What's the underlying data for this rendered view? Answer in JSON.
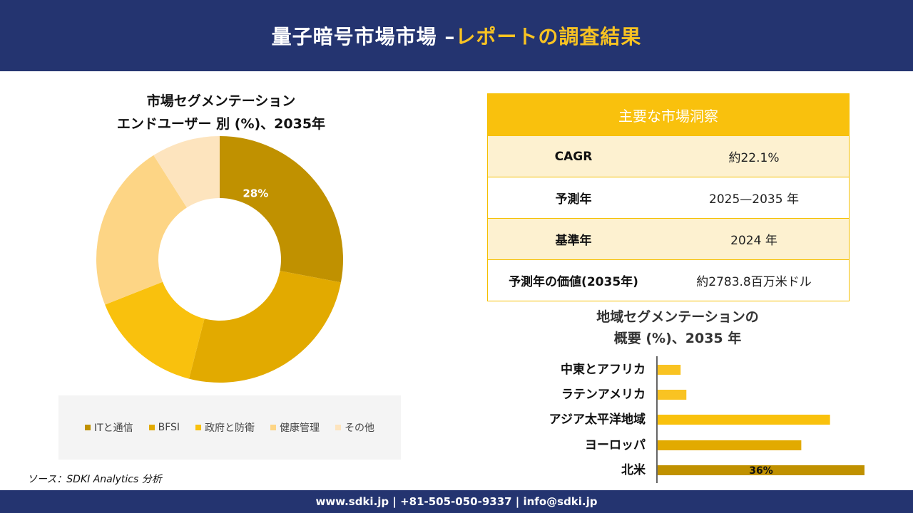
{
  "header": {
    "title_main": "量子暗号市場市場 –",
    "title_accent": "レポートの調査結果"
  },
  "footer": {
    "contact": "www.sdki.jp | +81-505-050-9337 | info@sdki.jp"
  },
  "source": "ソース：SDKI Analytics 分析",
  "insight": {
    "heading": "主要な市場洞察",
    "rows": [
      {
        "label": "CAGR",
        "value": "約22.1%"
      },
      {
        "label": "予測年",
        "value": "2025—2035 年"
      },
      {
        "label": "基準年",
        "value": "2024 年"
      },
      {
        "label": "予測年の価値(2035年)",
        "value": "約2783.8百万米ドル"
      }
    ]
  },
  "chart_data": [
    {
      "type": "pie",
      "title": "市場セグメンテーション",
      "subtitle": "エンドユーザー 別 (%)、2035年",
      "categories": [
        "ITと通信",
        "BFSI",
        "政府と防衛",
        "健康管理",
        "その他"
      ],
      "values": [
        28,
        26,
        15,
        22,
        9
      ],
      "data_labels": [
        "28%",
        "",
        "",
        "",
        ""
      ],
      "colors": [
        "#c09100",
        "#e2aa00",
        "#f9c10d",
        "#fdd585",
        "#fde4be"
      ],
      "legend_position": "bottom",
      "donut": true
    },
    {
      "type": "bar",
      "orientation": "horizontal",
      "title": "地域セグメンテーションの",
      "subtitle": "概要 (%)、2035 年",
      "categories": [
        "中東とアフリカ",
        "ラテンアメリカ",
        "アジア太平洋地域",
        "ヨーロッパ",
        "北米"
      ],
      "values": [
        4,
        5,
        30,
        25,
        36
      ],
      "data_labels": [
        "",
        "",
        "",
        "",
        "36%"
      ],
      "colors": [
        "#f9c322",
        "#f9c322",
        "#f9c10d",
        "#e2aa00",
        "#c09100"
      ],
      "xlim": [
        0,
        36
      ]
    }
  ]
}
